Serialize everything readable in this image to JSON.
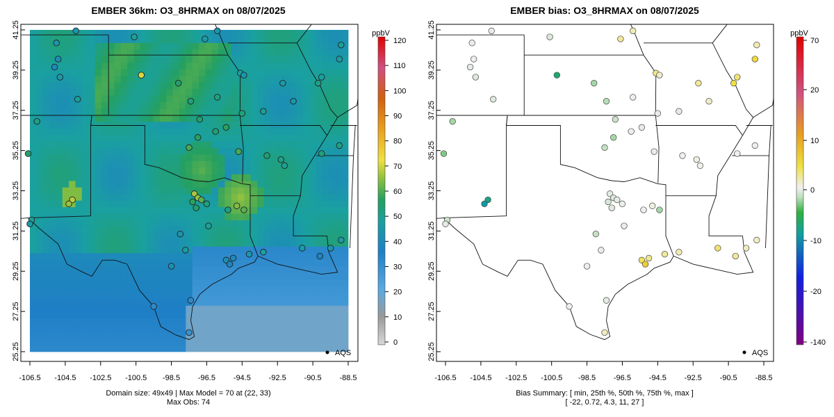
{
  "left_panel": {
    "title": "EMBER 36km: O3_8HRMAX on 08/07/2025",
    "x_ticks": [
      "-106.5",
      "-104.5",
      "-102.5",
      "-100.5",
      "-98.5",
      "-96.5",
      "-94.5",
      "-92.5",
      "-90.5",
      "-88.5"
    ],
    "y_ticks": [
      "25.25",
      "27.25",
      "29.25",
      "31.25",
      "33.25",
      "35.25",
      "37.25",
      "39.25",
      "41.25"
    ],
    "legend_label": "AQS",
    "colorbar_unit": "ppbV",
    "colorbar_ticks": [
      "0",
      "10",
      "20",
      "30",
      "40",
      "50",
      "60",
      "70",
      "80",
      "90",
      "100",
      "110",
      "120"
    ],
    "caption_line1": "Domain size: 49x49 | Max Model = 70 at (22, 33)",
    "caption_line2": "Max Obs: 74"
  },
  "right_panel": {
    "title": "EMBER bias: O3_8HRMAX on 08/07/2025",
    "x_ticks": [
      "-106.5",
      "-104.5",
      "-102.5",
      "-100.5",
      "-98.5",
      "-96.5",
      "-94.5",
      "-92.5",
      "-90.5",
      "-88.5"
    ],
    "y_ticks": [
      "25.25",
      "27.25",
      "29.25",
      "31.25",
      "33.25",
      "35.25",
      "37.25",
      "39.25",
      "41.25"
    ],
    "legend_label": "AQS",
    "colorbar_unit": "ppbV",
    "colorbar_ticks": [
      "70",
      "20",
      "10",
      "0",
      "-10",
      "-20",
      "-140"
    ],
    "caption_line1": "Bias Summary: [ min, 25th %, 50th %, 75th %, max ]",
    "caption_line2": "[ -22,   0.72,   4.3,   11,   27 ]"
  },
  "colors": {
    "ozone_scale": [
      "#d8d8d8",
      "#9a9a9a",
      "#5aaae0",
      "#1f7fc6",
      "#1aa0a0",
      "#25a060",
      "#8ec040",
      "#f0e040",
      "#e8a020",
      "#d06010",
      "#d05080",
      "#e00000"
    ],
    "bias_scale": [
      "#800080",
      "#1020e0",
      "#10a0a0",
      "#30b040",
      "#c0e0c0",
      "#f0f0f0",
      "#f0e040",
      "#e8a020",
      "#d05010",
      "#e00000"
    ]
  },
  "left_stations": [
    [
      -106.1,
      36.7,
      48
    ],
    [
      -106.6,
      35.1,
      52
    ],
    [
      -105.0,
      40.6,
      40
    ],
    [
      -104.9,
      39.8,
      38
    ],
    [
      -105.1,
      39.4,
      36
    ],
    [
      -104.8,
      38.9,
      41
    ],
    [
      -104.1,
      32.8,
      70
    ],
    [
      -104.3,
      32.6,
      66
    ],
    [
      -103.8,
      37.8,
      45
    ],
    [
      -100.2,
      39.0,
      74
    ],
    [
      -98.1,
      38.6,
      52
    ],
    [
      -97.4,
      37.7,
      50
    ],
    [
      -97.5,
      35.4,
      58
    ],
    [
      -97.0,
      35.9,
      55
    ],
    [
      -96.0,
      36.2,
      52
    ],
    [
      -95.4,
      36.4,
      55
    ],
    [
      -97.2,
      33.1,
      68
    ],
    [
      -97.0,
      32.9,
      66
    ],
    [
      -96.8,
      32.8,
      60
    ],
    [
      -97.3,
      32.7,
      55
    ],
    [
      -96.5,
      32.6,
      50
    ],
    [
      -97.1,
      32.4,
      52
    ],
    [
      -94.8,
      32.5,
      64
    ],
    [
      -94.4,
      32.3,
      60
    ],
    [
      -94.7,
      35.2,
      58
    ],
    [
      -93.1,
      35.0,
      52
    ],
    [
      -92.3,
      34.8,
      48
    ],
    [
      -92.1,
      34.5,
      46
    ],
    [
      -90.0,
      35.1,
      50
    ],
    [
      -89.0,
      35.5,
      48
    ],
    [
      -95.4,
      29.8,
      38
    ],
    [
      -95.2,
      29.6,
      35
    ],
    [
      -95.0,
      29.9,
      36
    ],
    [
      -94.1,
      30.1,
      40
    ],
    [
      -93.3,
      30.2,
      44
    ],
    [
      -91.1,
      30.4,
      42
    ],
    [
      -90.1,
      30.0,
      35
    ],
    [
      -89.5,
      30.4,
      40
    ],
    [
      -88.9,
      30.8,
      42
    ],
    [
      -97.7,
      30.3,
      42
    ],
    [
      -98.5,
      29.5,
      38
    ],
    [
      -97.4,
      27.8,
      30
    ],
    [
      -97.5,
      26.2,
      28
    ],
    [
      -99.5,
      27.5,
      30
    ],
    [
      -106.4,
      31.8,
      45
    ],
    [
      -106.5,
      31.6,
      42
    ],
    [
      -103.9,
      41.2,
      40
    ],
    [
      -100.6,
      40.9,
      45
    ],
    [
      -96.6,
      40.8,
      42
    ],
    [
      -95.9,
      41.2,
      40
    ],
    [
      -94.6,
      39.1,
      44
    ],
    [
      -94.4,
      39.0,
      40
    ],
    [
      -92.2,
      38.6,
      42
    ],
    [
      -90.2,
      38.6,
      48
    ],
    [
      -90.0,
      38.9,
      44
    ],
    [
      -89.0,
      39.8,
      42
    ],
    [
      -88.9,
      40.5,
      45
    ],
    [
      -91.6,
      37.7,
      40
    ],
    [
      -94.5,
      37.1,
      50
    ],
    [
      -93.3,
      37.2,
      46
    ],
    [
      -98.0,
      31.1,
      40
    ],
    [
      -96.4,
      31.5,
      45
    ],
    [
      -95.3,
      32.3,
      48
    ],
    [
      -96.9,
      36.8,
      52
    ],
    [
      -95.9,
      37.9,
      50
    ]
  ],
  "right_stations": [
    [
      -106.1,
      36.7,
      -6
    ],
    [
      -106.6,
      35.1,
      -8
    ],
    [
      -105.0,
      40.6,
      4
    ],
    [
      -104.9,
      39.8,
      5
    ],
    [
      -105.1,
      39.4,
      3
    ],
    [
      -104.8,
      38.9,
      0
    ],
    [
      -104.1,
      32.8,
      -18
    ],
    [
      -104.3,
      32.6,
      -22
    ],
    [
      -103.8,
      37.8,
      0
    ],
    [
      -100.2,
      39.0,
      -16
    ],
    [
      -98.1,
      38.6,
      -6
    ],
    [
      -97.4,
      37.7,
      -5
    ],
    [
      -97.5,
      35.4,
      -4
    ],
    [
      -97.0,
      35.9,
      -6
    ],
    [
      -96.0,
      36.2,
      5
    ],
    [
      -95.4,
      36.4,
      3
    ],
    [
      -97.2,
      33.1,
      2
    ],
    [
      -97.0,
      32.9,
      0
    ],
    [
      -96.8,
      32.8,
      3
    ],
    [
      -97.3,
      32.7,
      -1
    ],
    [
      -96.5,
      32.6,
      5
    ],
    [
      -97.1,
      32.4,
      1
    ],
    [
      -94.8,
      32.5,
      8
    ],
    [
      -94.4,
      32.3,
      -6
    ],
    [
      -94.7,
      35.2,
      4
    ],
    [
      -93.1,
      35.0,
      6
    ],
    [
      -92.3,
      34.8,
      8
    ],
    [
      -92.1,
      34.5,
      7
    ],
    [
      -90.0,
      35.1,
      6
    ],
    [
      -89.0,
      35.5,
      5
    ],
    [
      -95.4,
      29.8,
      20
    ],
    [
      -95.2,
      29.6,
      27
    ],
    [
      -95.0,
      29.9,
      15
    ],
    [
      -94.1,
      30.1,
      14
    ],
    [
      -93.3,
      30.2,
      12
    ],
    [
      -91.1,
      30.4,
      18
    ],
    [
      -90.1,
      30.0,
      14
    ],
    [
      -89.5,
      30.4,
      11
    ],
    [
      -88.9,
      30.8,
      10
    ],
    [
      -97.7,
      30.3,
      4
    ],
    [
      -98.5,
      29.5,
      5
    ],
    [
      -97.4,
      27.8,
      2
    ],
    [
      -97.5,
      26.2,
      11
    ],
    [
      -99.5,
      27.5,
      5
    ],
    [
      -106.4,
      31.8,
      -3
    ],
    [
      -106.5,
      31.6,
      2
    ],
    [
      -103.9,
      41.2,
      3
    ],
    [
      -100.6,
      40.9,
      0
    ],
    [
      -96.6,
      40.8,
      14
    ],
    [
      -95.9,
      41.2,
      12
    ],
    [
      -94.6,
      39.1,
      16
    ],
    [
      -94.4,
      39.0,
      10
    ],
    [
      -92.2,
      38.6,
      14
    ],
    [
      -90.2,
      38.6,
      22
    ],
    [
      -90.0,
      38.9,
      18
    ],
    [
      -89.0,
      39.8,
      24
    ],
    [
      -88.9,
      40.5,
      12
    ],
    [
      -91.6,
      37.7,
      10
    ],
    [
      -94.5,
      37.1,
      4
    ],
    [
      -93.3,
      37.2,
      3
    ],
    [
      -98.0,
      31.1,
      -4
    ],
    [
      -96.4,
      31.5,
      4
    ],
    [
      -95.3,
      32.3,
      6
    ],
    [
      -96.9,
      36.8,
      -3
    ],
    [
      -95.9,
      37.9,
      5
    ]
  ]
}
